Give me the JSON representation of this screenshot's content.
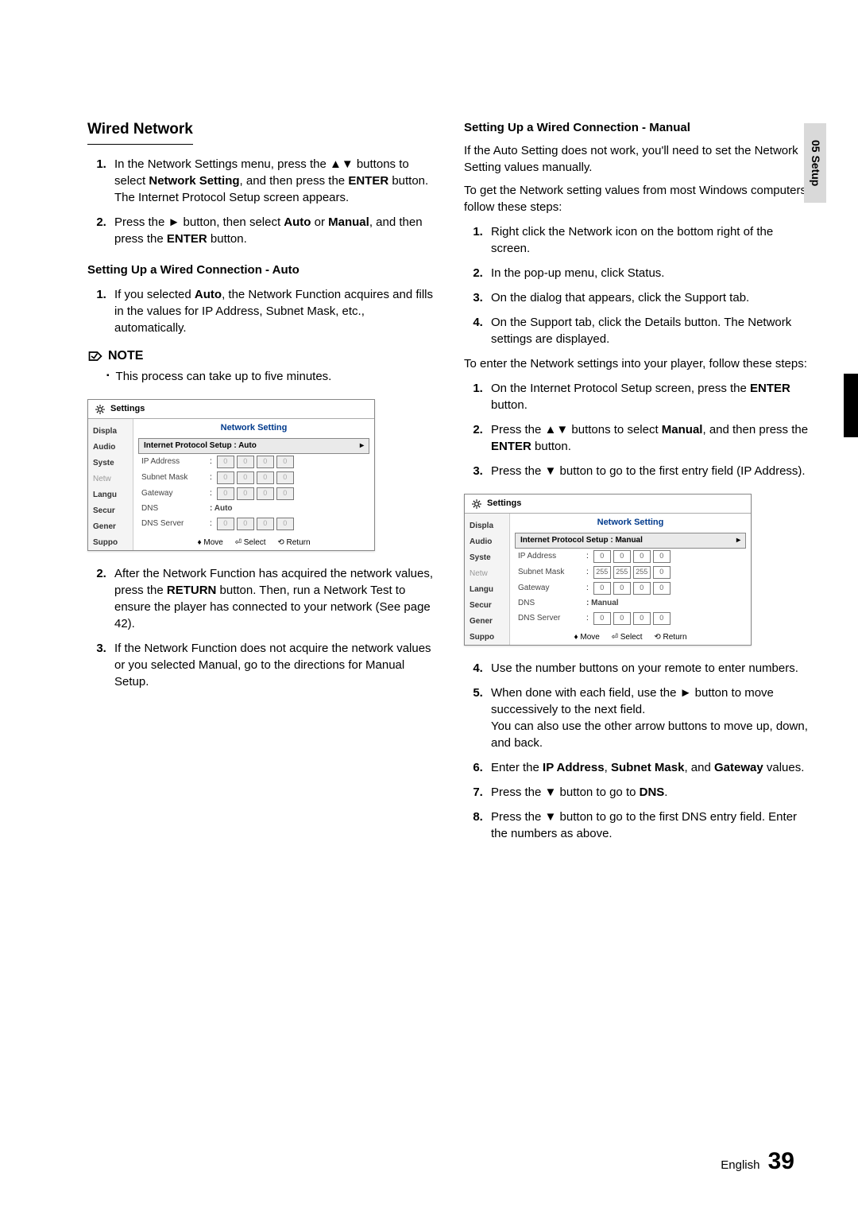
{
  "sideTab": "05  Setup",
  "left": {
    "title": "Wired Network",
    "intro": [
      {
        "n": "1.",
        "t": "In the Network Settings menu, press the ▲▼ buttons to select <b>Network Setting</b>, and then press the <b>ENTER</b> button.<br>The Internet Protocol Setup screen appears."
      },
      {
        "n": "2.",
        "t": "Press the ► button, then select <b>Auto</b> or <b>Manual</b>, and then press the <b>ENTER</b> button."
      }
    ],
    "sub1": "Setting Up a Wired Connection - Auto",
    "autoSteps": [
      {
        "n": "1.",
        "t": "If you selected <b>Auto</b>, the Network Function acquires and fills in the values for IP Address, Subnet Mask, etc., automatically."
      }
    ],
    "noteLabel": "NOTE",
    "noteText": "This process can take up to five minutes.",
    "afterFig": [
      {
        "n": "2.",
        "t": "After the Network Function has acquired the network values, press the <b>RETURN</b> button. Then, run a Network Test to ensure the player has connected to your network (See page 42)."
      },
      {
        "n": "3.",
        "t": "If the Network Function does not acquire the network values or you selected Manual, go to the directions for Manual Setup."
      }
    ]
  },
  "right": {
    "sub": "Setting Up a Wired Connection - Manual",
    "p1": "If the Auto Setting does not work, you'll need to set the Network Setting values manually.",
    "p2": "To get the Network setting values from most Windows computers, follow these steps:",
    "steps1": [
      {
        "n": "1.",
        "t": "Right click the Network icon on the bottom right of the screen."
      },
      {
        "n": "2.",
        "t": "In the pop-up menu, click Status."
      },
      {
        "n": "3.",
        "t": "On the dialog that appears, click the Support tab."
      },
      {
        "n": "4.",
        "t": "On the Support tab, click the Details button. The Network settings are displayed."
      }
    ],
    "p3": "To enter the Network settings into your player, follow these steps:",
    "steps2": [
      {
        "n": "1.",
        "t": "On the Internet Protocol Setup screen, press the <b>ENTER</b> button."
      },
      {
        "n": "2.",
        "t": "Press the ▲▼ buttons to select <b>Manual</b>, and then press the <b>ENTER</b> button."
      },
      {
        "n": "3.",
        "t": "Press the ▼ button to go to the first entry field (IP Address)."
      }
    ],
    "steps3": [
      {
        "n": "4.",
        "t": "Use the number buttons on your remote to enter numbers."
      },
      {
        "n": "5.",
        "t": "When done with each field, use the ► button to move successively to the next field.<br>You can also use the other arrow buttons to move up, down, and back."
      },
      {
        "n": "6.",
        "t": "Enter the <b>IP Address</b>, <b>Subnet Mask</b>, and <b>Gateway</b> values."
      },
      {
        "n": "7.",
        "t": "Press the ▼ button to go to <b>DNS</b>."
      },
      {
        "n": "8.",
        "t": "Press the ▼ button to go to the first DNS entry field. Enter the numbers as above."
      }
    ]
  },
  "fig": {
    "title": "Settings",
    "caption": "Network Setting",
    "sidebar": [
      "Displa",
      "Audio",
      "Syste",
      "Netw",
      "Langu",
      "Secur",
      "Gener",
      "Suppo"
    ],
    "footer": {
      "move": "♦ Move",
      "select": "⏎ Select",
      "return": "⟲ Return"
    },
    "auto": {
      "selLabel": "Internet Protocol Setup  : Auto",
      "rows": [
        {
          "lbl": "IP Address",
          "vals": [
            "0",
            "0",
            "0",
            "0"
          ],
          "dim": true
        },
        {
          "lbl": "Subnet Mask",
          "vals": [
            "0",
            "0",
            "0",
            "0"
          ],
          "dim": true
        },
        {
          "lbl": "Gateway",
          "vals": [
            "0",
            "0",
            "0",
            "0"
          ],
          "dim": true
        },
        {
          "lbl": "DNS",
          "plain": ": Auto"
        },
        {
          "lbl": "DNS Server",
          "vals": [
            "0",
            "0",
            "0",
            "0"
          ],
          "dim": true
        }
      ]
    },
    "manual": {
      "selLabel": "Internet Protocol Setup  : Manual",
      "rows": [
        {
          "lbl": "IP Address",
          "vals": [
            "0",
            "0",
            "0",
            "0"
          ],
          "dim": false
        },
        {
          "lbl": "Subnet Mask",
          "vals": [
            "255",
            "255",
            "255",
            "0"
          ],
          "dim": false
        },
        {
          "lbl": "Gateway",
          "vals": [
            "0",
            "0",
            "0",
            "0"
          ],
          "dim": false
        },
        {
          "lbl": "DNS",
          "plain": ": Manual"
        },
        {
          "lbl": "DNS Server",
          "vals": [
            "0",
            "0",
            "0",
            "0"
          ],
          "dim": false
        }
      ]
    }
  },
  "footer": {
    "lang": "English",
    "page": "39"
  }
}
